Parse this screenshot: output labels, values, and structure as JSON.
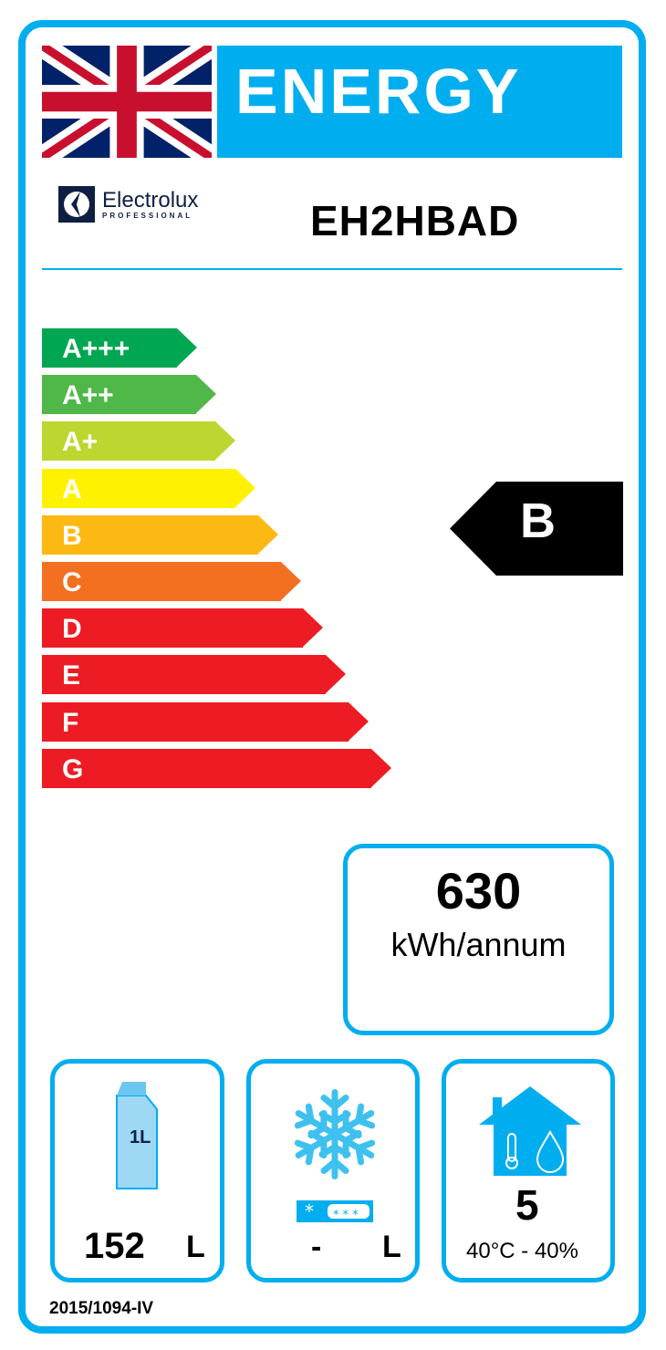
{
  "header": {
    "title": "ENERGY",
    "flag": "united-kingdom-flag"
  },
  "brand": {
    "name": "Electrolux",
    "sub": "PROFESSIONAL"
  },
  "model": "EH2HBAD",
  "scale": [
    {
      "label": "A+++",
      "color": "#00A651"
    },
    {
      "label": "A++",
      "color": "#50B848"
    },
    {
      "label": "A+",
      "color": "#BED630"
    },
    {
      "label": "A",
      "color": "#FFF200"
    },
    {
      "label": "B",
      "color": "#FDB913"
    },
    {
      "label": "C",
      "color": "#F37021"
    },
    {
      "label": "D",
      "color": "#ED1C24"
    },
    {
      "label": "E",
      "color": "#ED1C24"
    },
    {
      "label": "F",
      "color": "#ED1C24"
    },
    {
      "label": "G",
      "color": "#ED1C24"
    }
  ],
  "rating": "B",
  "consumption": {
    "value": "630",
    "unit": "kWh/annum"
  },
  "chilled": {
    "value": "152",
    "unit": "L",
    "icon": "milk-carton-icon",
    "icon_text": "1L"
  },
  "frozen": {
    "value": "-",
    "unit": "L",
    "icon": "snowflake-icon"
  },
  "climate": {
    "value": "5",
    "conditions": "40°C - 40%",
    "icon": "house-climate-icon"
  },
  "regulation": "2015/1094-IV",
  "accent": "#00AEEF"
}
